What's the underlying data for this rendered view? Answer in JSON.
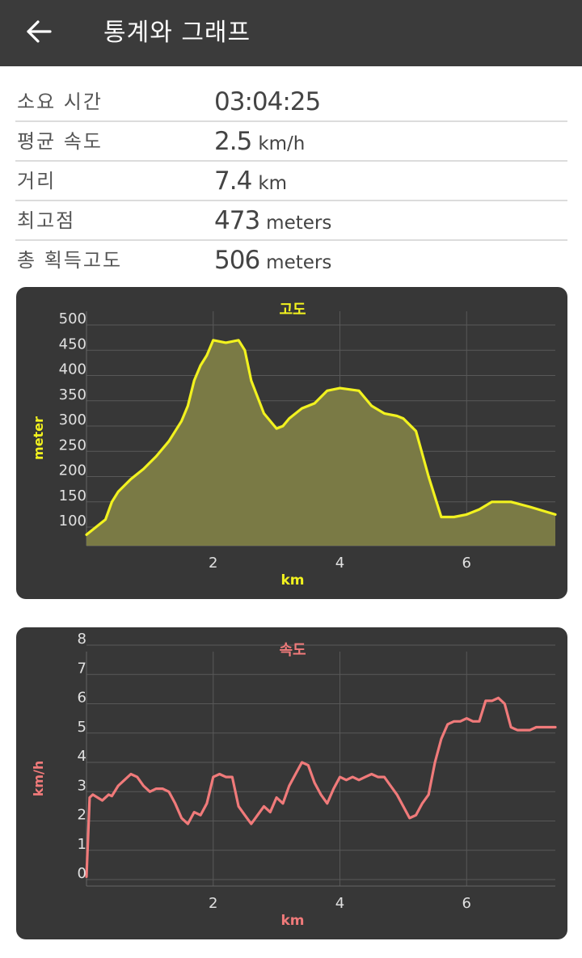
{
  "header": {
    "title": "통계와 그래프",
    "back_icon": "arrow-left-icon"
  },
  "stats": [
    {
      "label": "소요 시간",
      "value": "03:04:25",
      "unit": ""
    },
    {
      "label": "평균 속도",
      "value": "2.5",
      "unit": "km/h"
    },
    {
      "label": "거리",
      "value": "7.4",
      "unit": "km"
    },
    {
      "label": "최고점",
      "value": "473",
      "unit": "meters"
    },
    {
      "label": "총 획득고도",
      "value": "506",
      "unit": "meters"
    }
  ],
  "colors": {
    "appbar": "#3b3b3b",
    "card": "#373737",
    "elevation_line": "#f2f21f",
    "elevation_fill": "#7a7a45",
    "speed_line": "#f07a7a"
  },
  "chart_data": [
    {
      "type": "area",
      "title": "고도",
      "xlabel": "km",
      "ylabel": "meter",
      "xlim": [
        0,
        7.4
      ],
      "ylim": [
        70,
        520
      ],
      "xticks": [
        2,
        4,
        6
      ],
      "yticks": [
        100,
        150,
        200,
        250,
        300,
        350,
        400,
        450,
        500
      ],
      "grid": true,
      "x": [
        0,
        0.3,
        0.4,
        0.5,
        0.7,
        0.9,
        1.1,
        1.3,
        1.5,
        1.6,
        1.7,
        1.8,
        1.9,
        2.0,
        2.2,
        2.4,
        2.5,
        2.6,
        2.8,
        3.0,
        3.1,
        3.2,
        3.4,
        3.6,
        3.8,
        4.0,
        4.3,
        4.5,
        4.7,
        4.9,
        5.0,
        5.2,
        5.4,
        5.6,
        5.8,
        6.0,
        6.2,
        6.4,
        6.7,
        7.0,
        7.4
      ],
      "values": [
        85,
        115,
        150,
        170,
        195,
        215,
        240,
        270,
        310,
        340,
        390,
        420,
        440,
        470,
        465,
        470,
        450,
        390,
        325,
        295,
        300,
        315,
        335,
        345,
        370,
        375,
        370,
        340,
        325,
        320,
        315,
        290,
        200,
        120,
        120,
        125,
        135,
        150,
        150,
        140,
        125
      ]
    },
    {
      "type": "line",
      "title": "속도",
      "xlabel": "km",
      "ylabel": "km/h",
      "xlim": [
        0,
        7.4
      ],
      "ylim": [
        0,
        8
      ],
      "xticks": [
        2,
        4,
        6
      ],
      "yticks": [
        0,
        1,
        2,
        3,
        4,
        5,
        6,
        7,
        8
      ],
      "grid": true,
      "x": [
        0.0,
        0.05,
        0.1,
        0.25,
        0.35,
        0.4,
        0.5,
        0.6,
        0.7,
        0.8,
        0.9,
        1.0,
        1.1,
        1.2,
        1.3,
        1.4,
        1.5,
        1.6,
        1.7,
        1.8,
        1.9,
        2.0,
        2.1,
        2.2,
        2.3,
        2.4,
        2.5,
        2.6,
        2.7,
        2.8,
        2.9,
        3.0,
        3.1,
        3.2,
        3.3,
        3.4,
        3.5,
        3.6,
        3.7,
        3.8,
        3.9,
        4.0,
        4.1,
        4.2,
        4.3,
        4.4,
        4.5,
        4.6,
        4.7,
        4.8,
        4.9,
        5.0,
        5.1,
        5.2,
        5.3,
        5.4,
        5.5,
        5.6,
        5.7,
        5.8,
        5.9,
        6.0,
        6.1,
        6.2,
        6.3,
        6.4,
        6.5,
        6.6,
        6.7,
        6.8,
        6.9,
        7.0,
        7.1,
        7.2,
        7.3,
        7.4
      ],
      "values": [
        0.1,
        2.8,
        2.9,
        2.7,
        2.9,
        2.85,
        3.2,
        3.4,
        3.6,
        3.5,
        3.2,
        3.0,
        3.1,
        3.1,
        3.0,
        2.6,
        2.1,
        1.9,
        2.3,
        2.2,
        2.6,
        3.5,
        3.6,
        3.5,
        3.5,
        2.5,
        2.2,
        1.9,
        2.2,
        2.5,
        2.3,
        2.8,
        2.6,
        3.2,
        3.6,
        4.0,
        3.9,
        3.3,
        2.9,
        2.6,
        3.1,
        3.5,
        3.4,
        3.5,
        3.4,
        3.5,
        3.6,
        3.5,
        3.5,
        3.2,
        2.9,
        2.5,
        2.1,
        2.2,
        2.6,
        2.9,
        4.0,
        4.8,
        5.3,
        5.4,
        5.4,
        5.5,
        5.4,
        5.4,
        6.1,
        6.1,
        6.2,
        6.0,
        5.2,
        5.1,
        5.1,
        5.1,
        5.2,
        5.2,
        5.2,
        5.2
      ]
    }
  ]
}
